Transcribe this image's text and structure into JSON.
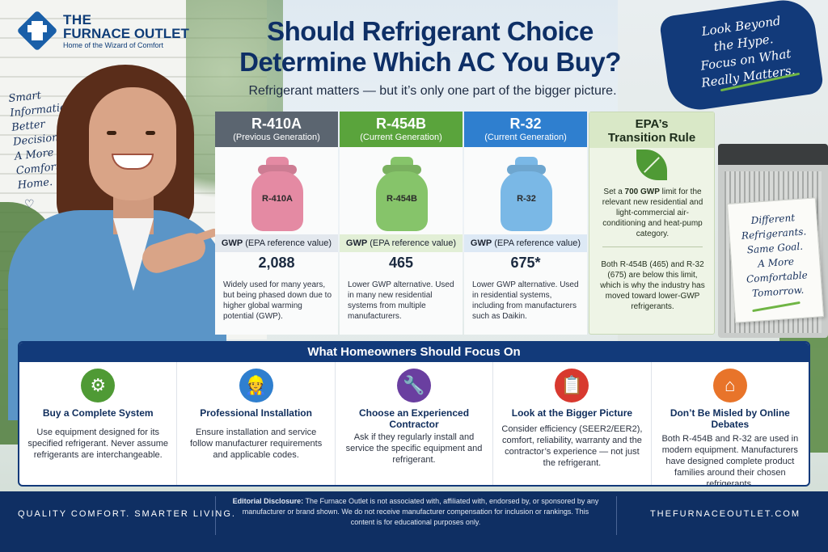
{
  "logo": {
    "line1": "THE",
    "line2": "FURNACE OUTLET",
    "tagline": "Home of the Wizard of Comfort"
  },
  "title": {
    "line1": "Should Refrigerant Choice",
    "line2": "Determine Which AC You Buy?"
  },
  "subtitle": "Refrigerant matters — but it’s only one part of the bigger picture.",
  "note_left": [
    "Smart",
    "Information.",
    "Better",
    "Decisions.",
    "A More",
    "Comfortable",
    "Home."
  ],
  "note_top_right": [
    "Look Beyond",
    "the Hype.",
    "Focus on What",
    "Really Matters."
  ],
  "note_card": [
    "Different",
    "Refrigerants.",
    "Same Goal.",
    "A More",
    "Comfortable",
    "Tomorrow."
  ],
  "gwp_label_bold": "GWP",
  "gwp_label_rest": " (EPA reference value)",
  "refrigerants": [
    {
      "name": "R-410A",
      "generation": "(Previous Generation)",
      "tank_label": "R-410A",
      "gwp": "2,088",
      "description": "Widely used for many years, but being phased down due to higher global warming potential (GWP).",
      "head_color": "#5b6570",
      "tank_color": "#e48aa3",
      "band_color": "#e3e8ee"
    },
    {
      "name": "R-454B",
      "generation": "(Current Generation)",
      "tank_label": "R-454B",
      "gwp": "465",
      "description": "Lower GWP alternative. Used in many new residential systems from multiple manufacturers.",
      "head_color": "#5aa43c",
      "tank_color": "#86c46a",
      "band_color": "#e2efd6"
    },
    {
      "name": "R-32",
      "generation": "(Current Generation)",
      "tank_label": "R-32",
      "gwp": "675*",
      "description": "Lower GWP alternative. Used in residential systems, including from manufacturers such as Daikin.",
      "head_color": "#2f7fcf",
      "tank_color": "#7ab8e6",
      "band_color": "#dde9f5"
    }
  ],
  "epa": {
    "title_line1": "EPA’s",
    "title_line2": "Transition Rule",
    "text1_a": "Set a ",
    "text1_bold": "700 GWP",
    "text1_b": " limit for the relevant new residential and light-commercial air-conditioning and heat-pump category.",
    "text2": "Both R-454B (465) and R-32 (675) are below this limit, which is why the industry has moved toward lower-GWP refrigerants."
  },
  "focus": {
    "heading": "What Homeowners Should Focus On",
    "items": [
      {
        "icon": "gear-icon",
        "glyph": "⚙",
        "color": "#4f9a35",
        "title": "Buy a Complete System",
        "desc": "Use equipment designed for its specified refrigerant. Never assume refrigerants are interchangeable."
      },
      {
        "icon": "technician-icon",
        "glyph": "👷",
        "color": "#2f7fcf",
        "title": "Professional Installation",
        "desc": "Ensure installation and service follow manufacturer requirements and applicable codes."
      },
      {
        "icon": "wrench-icon",
        "glyph": "🔧",
        "color": "#6a3fa0",
        "title": "Choose an Experienced Contractor",
        "desc": "Ask if they regularly install and service the specific equipment and refrigerant."
      },
      {
        "icon": "clipboard-icon",
        "glyph": "📋",
        "color": "#d8392f",
        "title": "Look at the Bigger Picture",
        "desc": "Consider efficiency (SEER2/EER2), comfort, reliability, warranty and the contractor’s experience — not just the refrigerant."
      },
      {
        "icon": "home-icon",
        "glyph": "⌂",
        "color": "#e8742a",
        "title": "Don’t Be Misled by Online Debates",
        "desc": "Both R-454B and R-32 are used in modern equipment. Manufacturers have designed complete product families around their chosen refrigerants."
      }
    ]
  },
  "footer": {
    "left": "QUALITY COMFORT. SMARTER LIVING.",
    "right": "THEFURNACEOUTLET.COM",
    "disclosure_bold": "Editorial Disclosure:",
    "disclosure_text": " The Furnace Outlet is not associated with, affiliated with, endorsed by, or sponsored by any manufacturer or brand shown. We do not receive manufacturer compensation for inclusion or rankings. This content is for educational purposes only."
  }
}
